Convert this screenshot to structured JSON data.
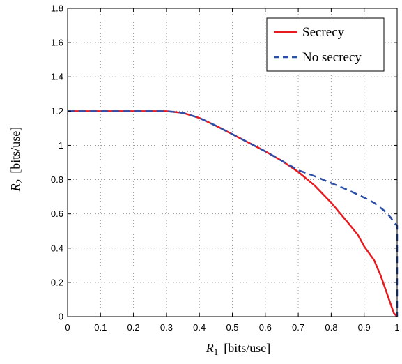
{
  "chart_data": {
    "type": "line",
    "title": "",
    "xlabel_var": "R",
    "xlabel_sub": "1",
    "xlabel_unit": "[bits/use]",
    "ylabel_var": "R",
    "ylabel_sub": "2",
    "ylabel_unit": "[bits/use]",
    "xlim": [
      0,
      1
    ],
    "ylim": [
      0,
      1.8
    ],
    "xticks": [
      0,
      0.1,
      0.2,
      0.3,
      0.4,
      0.5,
      0.6,
      0.7,
      0.8,
      0.9,
      1
    ],
    "xtick_labels": [
      "0",
      "0.1",
      "0.2",
      "0.3",
      "0.4",
      "0.5",
      "0.6",
      "0.7",
      "0.8",
      "0.9",
      "1"
    ],
    "yticks": [
      0,
      0.2,
      0.4,
      0.6,
      0.8,
      1,
      1.2,
      1.4,
      1.6,
      1.8
    ],
    "ytick_labels": [
      "0",
      "0.2",
      "0.4",
      "0.6",
      "0.8",
      "1",
      "1.2",
      "1.4",
      "1.6",
      "1.8"
    ],
    "grid": true,
    "legend_position": "top-right",
    "series": [
      {
        "name": "Secrecy",
        "color": "#e8191f",
        "style": "solid",
        "x": [
          0,
          0.1,
          0.2,
          0.3,
          0.35,
          0.4,
          0.45,
          0.5,
          0.55,
          0.6,
          0.65,
          0.7,
          0.75,
          0.8,
          0.85,
          0.88,
          0.9,
          0.93,
          0.95,
          0.97,
          0.99,
          1.0
        ],
        "y": [
          1.2,
          1.2,
          1.2,
          1.2,
          1.19,
          1.16,
          1.115,
          1.065,
          1.015,
          0.965,
          0.91,
          0.845,
          0.765,
          0.665,
          0.55,
          0.48,
          0.41,
          0.33,
          0.24,
          0.13,
          0.02,
          0
        ]
      },
      {
        "name": "No secrecy",
        "color": "#2b4ea8",
        "style": "dashed",
        "x": [
          0,
          0.1,
          0.2,
          0.3,
          0.35,
          0.4,
          0.45,
          0.5,
          0.55,
          0.6,
          0.65,
          0.7,
          0.75,
          0.8,
          0.85,
          0.9,
          0.93,
          0.96,
          0.98,
          0.99,
          1.0,
          1.0
        ],
        "y": [
          1.2,
          1.2,
          1.2,
          1.2,
          1.19,
          1.16,
          1.115,
          1.065,
          1.015,
          0.965,
          0.91,
          0.855,
          0.82,
          0.78,
          0.74,
          0.695,
          0.665,
          0.62,
          0.58,
          0.55,
          0.53,
          0
        ]
      }
    ]
  }
}
